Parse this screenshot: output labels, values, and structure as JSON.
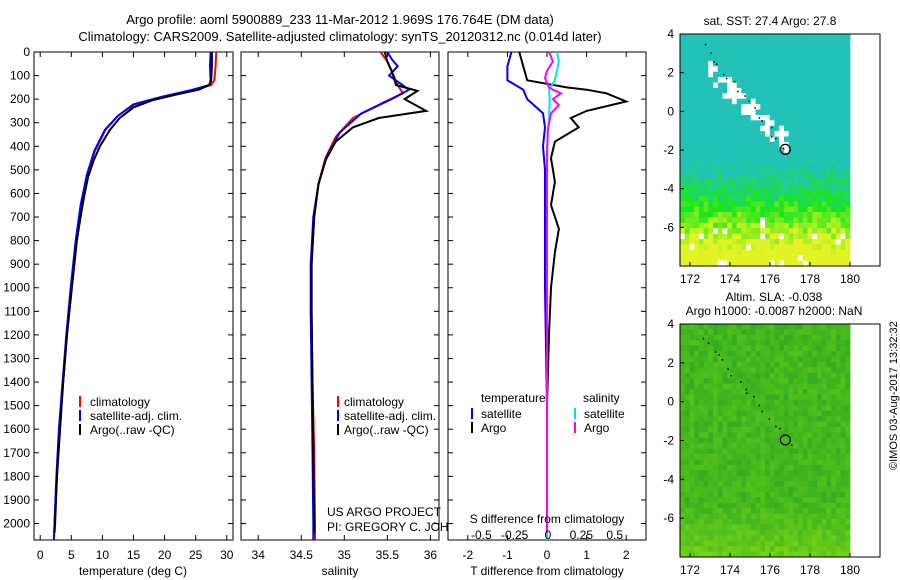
{
  "header": {
    "line1": "Argo profile: aoml 5900889_233 11-Mar-2012 1.969S 176.764E (DM data)",
    "line2": "Climatology: CARS2009. Satellite-adjusted climatology: synTS_20120312.nc (0.014d later)"
  },
  "stamp": "©IMOS 03-Aug-2017 13:32:32",
  "colors": {
    "clim": "#ff0000",
    "sat": "#0000ff",
    "argo": "#000000",
    "sal_sat": "#00e5e5",
    "sal_argo": "#ff00ff"
  },
  "chart_data": [
    {
      "type": "line",
      "name": "temperature-profile",
      "xlabel": "temperature (deg C)",
      "ylabel": "",
      "xlim": [
        -1,
        31
      ],
      "ylim": [
        2070,
        0
      ],
      "xticks": [
        0,
        5,
        10,
        15,
        20,
        25,
        30
      ],
      "yticks": [
        0,
        100,
        200,
        300,
        400,
        500,
        600,
        700,
        800,
        900,
        1000,
        1100,
        1200,
        1300,
        1400,
        1500,
        1600,
        1700,
        1800,
        1900,
        2000
      ],
      "legend": [
        "climatology",
        "satellite-adj. clim.",
        "Argo(..raw -QC)"
      ],
      "series": [
        {
          "name": "climatology",
          "color": "clim",
          "points": [
            [
              28.3,
              0
            ],
            [
              28.2,
              60
            ],
            [
              28,
              120
            ],
            [
              27.5,
              140
            ],
            [
              25,
              160
            ],
            [
              20,
              190
            ],
            [
              15,
              225
            ],
            [
              12.5,
              270
            ],
            [
              10.5,
              330
            ],
            [
              8.8,
              420
            ],
            [
              7.6,
              520
            ],
            [
              6.6,
              650
            ],
            [
              5.8,
              800
            ],
            [
              5,
              1000
            ],
            [
              4.3,
              1200
            ],
            [
              3.7,
              1400
            ],
            [
              3.1,
              1600
            ],
            [
              2.7,
              1800
            ],
            [
              2.3,
              2000
            ],
            [
              2.2,
              2070
            ]
          ]
        },
        {
          "name": "satellite-adj. clim.",
          "color": "sat",
          "points": [
            [
              27.4,
              0
            ],
            [
              27.3,
              60
            ],
            [
              27.4,
              120
            ],
            [
              27.2,
              140
            ],
            [
              24.5,
              160
            ],
            [
              19.5,
              190
            ],
            [
              15,
              222
            ],
            [
              12.5,
              270
            ],
            [
              10.4,
              330
            ],
            [
              8.7,
              420
            ],
            [
              7.5,
              520
            ],
            [
              6.5,
              650
            ],
            [
              5.7,
              800
            ],
            [
              4.9,
              1000
            ],
            [
              4.2,
              1200
            ],
            [
              3.6,
              1400
            ],
            [
              3,
              1600
            ],
            [
              2.6,
              1800
            ],
            [
              2.3,
              2000
            ],
            [
              2.2,
              2070
            ]
          ]
        },
        {
          "name": "Argo(..raw -QC)",
          "color": "argo",
          "points": [
            [
              27.6,
              0
            ],
            [
              27.6,
              60
            ],
            [
              27.5,
              120
            ],
            [
              27.2,
              140
            ],
            [
              25.5,
              160
            ],
            [
              22,
              180
            ],
            [
              18,
              205
            ],
            [
              15,
              235
            ],
            [
              12.8,
              280
            ],
            [
              11.2,
              330
            ],
            [
              9.6,
              400
            ],
            [
              8.6,
              460
            ],
            [
              7.7,
              530
            ],
            [
              7,
              620
            ],
            [
              6.5,
              700
            ],
            [
              5.9,
              800
            ],
            [
              5.1,
              1000
            ],
            [
              4.3,
              1200
            ],
            [
              3.7,
              1400
            ],
            [
              3.2,
              1600
            ],
            [
              2.7,
              1800
            ],
            [
              2.4,
              2000
            ],
            [
              2.3,
              2040
            ]
          ]
        }
      ]
    },
    {
      "type": "line",
      "name": "salinity-profile",
      "xlabel": "salinity",
      "ylabel": "",
      "xlim": [
        33.8,
        36.1
      ],
      "ylim": [
        2070,
        0
      ],
      "xticks": [
        34,
        34.5,
        35,
        35.5,
        36
      ],
      "legend": [
        "climatology",
        "satellite-adj. clim.",
        "Argo(..raw -QC)"
      ],
      "annotation": [
        "US ARGO PROJECT",
        "PI: GREGORY C. JOHNSON"
      ],
      "series": [
        {
          "name": "climatology",
          "color": "clim",
          "points": [
            [
              35.42,
              0
            ],
            [
              35.5,
              40
            ],
            [
              35.55,
              80
            ],
            [
              35.62,
              140
            ],
            [
              35.68,
              175
            ],
            [
              35.45,
              215
            ],
            [
              35.1,
              280
            ],
            [
              34.9,
              360
            ],
            [
              34.78,
              450
            ],
            [
              34.7,
              560
            ],
            [
              34.65,
              700
            ],
            [
              34.62,
              900
            ],
            [
              34.62,
              1100
            ],
            [
              34.63,
              1400
            ],
            [
              34.65,
              1700
            ],
            [
              34.66,
              2000
            ],
            [
              34.66,
              2070
            ]
          ]
        },
        {
          "name": "satellite-adj. clim.",
          "color": "sat",
          "points": [
            [
              35.5,
              0
            ],
            [
              35.55,
              30
            ],
            [
              35.62,
              60
            ],
            [
              35.52,
              100
            ],
            [
              35.75,
              160
            ],
            [
              35.55,
              200
            ],
            [
              35.2,
              260
            ],
            [
              34.95,
              340
            ],
            [
              34.8,
              440
            ],
            [
              34.7,
              560
            ],
            [
              34.64,
              700
            ],
            [
              34.61,
              900
            ],
            [
              34.61,
              1100
            ],
            [
              34.62,
              1400
            ],
            [
              34.63,
              1700
            ],
            [
              34.64,
              2000
            ],
            [
              34.64,
              2070
            ]
          ]
        },
        {
          "name": "Argo(..raw -QC)",
          "color": "argo",
          "points": [
            [
              35.47,
              0
            ],
            [
              35.5,
              40
            ],
            [
              35.56,
              90
            ],
            [
              35.6,
              140
            ],
            [
              35.85,
              165
            ],
            [
              35.7,
              200
            ],
            [
              35.95,
              250
            ],
            [
              35.4,
              280
            ],
            [
              35.1,
              320
            ],
            [
              34.9,
              380
            ],
            [
              34.78,
              460
            ],
            [
              34.7,
              560
            ],
            [
              34.65,
              700
            ],
            [
              34.62,
              900
            ],
            [
              34.62,
              1100
            ],
            [
              34.63,
              1400
            ],
            [
              34.64,
              1700
            ],
            [
              34.65,
              2000
            ],
            [
              34.65,
              2040
            ]
          ]
        }
      ]
    },
    {
      "type": "line",
      "name": "difference-profile",
      "xlabel": "T difference from climatology",
      "xlabel_top": "S difference from climatology",
      "xlim": [
        -2.5,
        2.5
      ],
      "ylim": [
        2070,
        0
      ],
      "xticks": [
        -2,
        -1,
        0,
        1,
        2
      ],
      "sticks": [
        -0.5,
        -0.25,
        0,
        0.25,
        0.5
      ],
      "legend_headers": [
        "temperature",
        "salinity"
      ],
      "legend": [
        "satellite",
        "Argo",
        "satellite",
        "Argo"
      ],
      "series": [
        {
          "name": "T satellite",
          "color": "sat",
          "points": [
            [
              -0.9,
              0
            ],
            [
              -1,
              60
            ],
            [
              -1,
              120
            ],
            [
              -0.6,
              160
            ],
            [
              -0.5,
              200
            ],
            [
              -0.1,
              260
            ],
            [
              -0.05,
              320
            ],
            [
              -0.1,
              400
            ],
            [
              -0.05,
              500
            ],
            [
              -0.05,
              700
            ],
            [
              -0.05,
              1000
            ],
            [
              0,
              1500
            ],
            [
              0,
              2070
            ]
          ]
        },
        {
          "name": "T Argo",
          "color": "argo",
          "points": [
            [
              -0.7,
              0
            ],
            [
              -0.6,
              60
            ],
            [
              -0.5,
              120
            ],
            [
              0.5,
              150
            ],
            [
              1,
              160
            ],
            [
              1.5,
              175
            ],
            [
              2,
              210
            ],
            [
              1,
              250
            ],
            [
              0.6,
              280
            ],
            [
              0.8,
              320
            ],
            [
              0.2,
              380
            ],
            [
              0.1,
              450
            ],
            [
              0.2,
              550
            ],
            [
              0.1,
              650
            ],
            [
              0.3,
              750
            ],
            [
              0.2,
              850
            ],
            [
              0.1,
              1000
            ],
            [
              0.05,
              1200
            ],
            [
              0,
              1500
            ],
            [
              0,
              2040
            ]
          ]
        },
        {
          "name": "S satellite",
          "color": "sal_sat",
          "points": [
            [
              0.25,
              0
            ],
            [
              0.3,
              40
            ],
            [
              0.25,
              80
            ],
            [
              0.2,
              120
            ],
            [
              0.05,
              160
            ],
            [
              0.07,
              200
            ],
            [
              0.05,
              280
            ],
            [
              0,
              400
            ],
            [
              0,
              2070
            ]
          ]
        },
        {
          "name": "S Argo",
          "color": "sal_argo",
          "points": [
            [
              0.05,
              0
            ],
            [
              0.15,
              40
            ],
            [
              0,
              80
            ],
            [
              -0.05,
              110
            ],
            [
              0.05,
              150
            ],
            [
              0.15,
              160
            ],
            [
              0.35,
              175
            ],
            [
              0.15,
              200
            ],
            [
              0.3,
              225
            ],
            [
              0.1,
              260
            ],
            [
              0.02,
              330
            ],
            [
              0,
              450
            ],
            [
              0,
              2040
            ]
          ]
        }
      ]
    },
    {
      "type": "heatmap",
      "name": "sst-map",
      "title": "sat. SST: 27.4 Argo: 27.8",
      "xlim": [
        171.5,
        181.5
      ],
      "ylim": [
        -8,
        4
      ],
      "xticks": [
        172,
        174,
        176,
        178,
        180
      ],
      "yticks": [
        4,
        2,
        0,
        -2,
        -4,
        -6
      ],
      "marker": [
        176.764,
        -1.969
      ]
    },
    {
      "type": "heatmap",
      "name": "sla-map",
      "title": [
        "Altim. SLA: -0.038",
        "Argo h1000: -0.0087 h2000: NaN"
      ],
      "xlim": [
        171.5,
        181.5
      ],
      "ylim": [
        -8,
        4
      ],
      "xticks": [
        172,
        174,
        176,
        178,
        180
      ],
      "yticks": [
        4,
        2,
        0,
        -2,
        -4,
        -6
      ],
      "marker": [
        176.764,
        -1.969
      ]
    }
  ]
}
